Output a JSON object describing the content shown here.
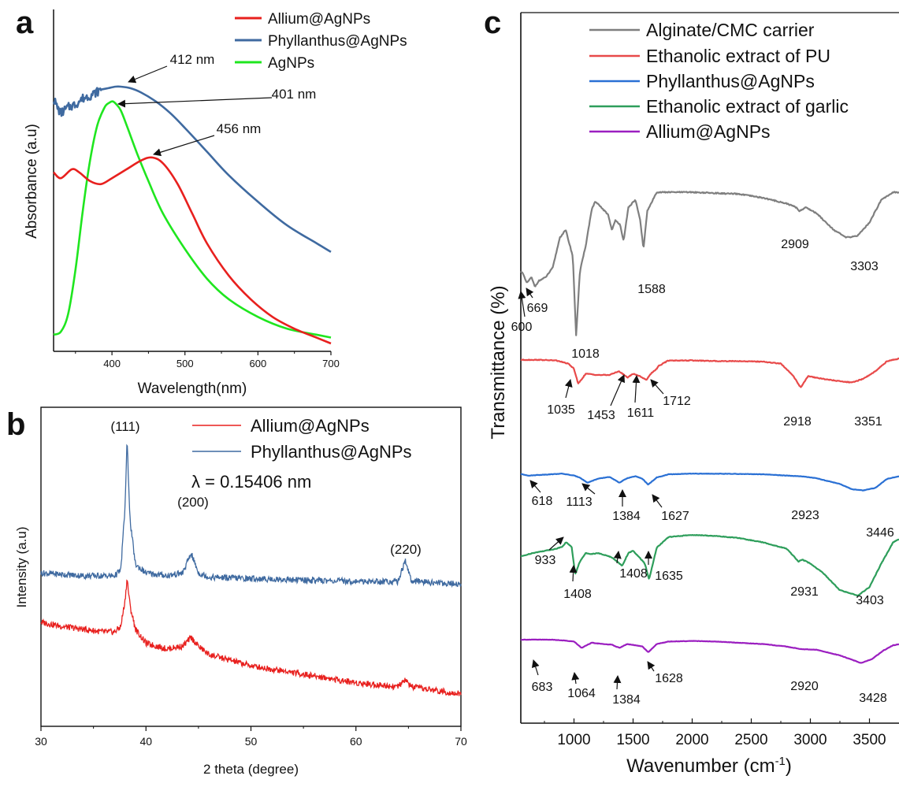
{
  "panels": [
    {
      "label": "a",
      "chart_data": {
        "type": "line",
        "xlabel": "Wavelength(nm)",
        "ylabel": "Absorbance (a.u)",
        "xlim": [
          320,
          700
        ],
        "xticks": [
          400,
          500,
          600,
          700
        ],
        "legend_position": "top-right",
        "series": [
          {
            "name": "Allium@AgNPs",
            "color": "#e8201e",
            "x": [
              320,
              330,
              345,
              355,
              370,
              385,
              400,
              420,
              440,
              455,
              470,
              490,
              510,
              530,
              560,
              590,
              620,
              650,
              680,
              700
            ],
            "y": [
              0.58,
              0.56,
              0.59,
              0.58,
              0.55,
              0.54,
              0.56,
              0.59,
              0.62,
              0.63,
              0.61,
              0.54,
              0.44,
              0.34,
              0.23,
              0.15,
              0.09,
              0.05,
              0.02,
              0.0
            ]
          },
          {
            "name": "Phyllanthus@AgNPs",
            "color": "#3f6aa0",
            "x": [
              320,
              325,
              330,
              340,
              350,
              360,
              370,
              378,
              385,
              395,
              405,
              412,
              425,
              440,
              460,
              480,
              500,
              530,
              560,
              600,
              640,
              680,
              700
            ],
            "y": [
              0.83,
              0.8,
              0.78,
              0.8,
              0.81,
              0.83,
              0.84,
              0.85,
              0.86,
              0.865,
              0.87,
              0.87,
              0.865,
              0.85,
              0.82,
              0.78,
              0.73,
              0.65,
              0.57,
              0.48,
              0.4,
              0.34,
              0.31
            ]
          },
          {
            "name": "AgNPs",
            "color": "#1fe61f",
            "x": [
              320,
              330,
              340,
              350,
              360,
              370,
              380,
              390,
              396,
              401,
              406,
              412,
              420,
              435,
              450,
              470,
              500,
              530,
              560,
              600,
              640,
              680,
              700
            ],
            "y": [
              0.03,
              0.04,
              0.1,
              0.25,
              0.45,
              0.62,
              0.74,
              0.8,
              0.815,
              0.82,
              0.81,
              0.79,
              0.74,
              0.64,
              0.55,
              0.44,
              0.32,
              0.22,
              0.15,
              0.09,
              0.05,
              0.03,
              0.02
            ]
          }
        ],
        "annotations": [
          "412 nm",
          "401 nm",
          "456 nm"
        ]
      }
    },
    {
      "label": "b",
      "chart_data": {
        "type": "line",
        "xlabel": "2 theta (degree)",
        "ylabel": "Intensity (a.u)",
        "xlim": [
          30,
          70
        ],
        "xticks": [
          30,
          40,
          50,
          60,
          70
        ],
        "legend_position": "top-right",
        "series": [
          {
            "name": "Allium@AgNPs",
            "color": "#e8201e",
            "x": [
              30,
              32,
              34,
              36,
              37,
              37.6,
              38.0,
              38.2,
              38.5,
              39.0,
              40,
              42,
              43.5,
              44.3,
              45,
              46,
              50,
              55,
              60,
              64,
              64.7,
              65.3,
              68,
              70
            ],
            "y": [
              0.345,
              0.33,
              0.32,
              0.31,
              0.31,
              0.33,
              0.42,
              0.5,
              0.4,
              0.32,
              0.27,
              0.25,
              0.26,
              0.29,
              0.26,
              0.23,
              0.19,
              0.16,
              0.13,
              0.115,
              0.14,
              0.115,
              0.1,
              0.09
            ]
          },
          {
            "name": "Phyllanthus@AgNPs",
            "color": "#3f6aa0",
            "x": [
              30,
              32,
              34,
              36,
              37,
              37.6,
              38.0,
              38.2,
              38.5,
              39.0,
              40,
              42,
              43.5,
              44.3,
              45,
              46,
              50,
              55,
              60,
              64,
              64.7,
              65.3,
              68,
              70
            ],
            "y": [
              0.52,
              0.515,
              0.51,
              0.51,
              0.51,
              0.53,
              0.75,
              0.99,
              0.7,
              0.55,
              0.52,
              0.51,
              0.52,
              0.59,
              0.52,
              0.505,
              0.5,
              0.495,
              0.49,
              0.49,
              0.565,
              0.49,
              0.485,
              0.48
            ]
          }
        ],
        "annotations": [
          "(111)",
          "(200)",
          "(220)",
          "λ = 0.15406 nm"
        ]
      }
    },
    {
      "label": "c",
      "chart_data": {
        "type": "line",
        "xlabel": "Wavenumber (cm",
        "xlabel_sup": "-1",
        "xlabel_close": ")",
        "ylabel": "Transmittance (%)",
        "xlim": [
          550,
          3750
        ],
        "xticks": [
          1000,
          1500,
          2000,
          2500,
          3000,
          3500
        ],
        "legend_position": "top",
        "series": [
          {
            "name": "Alginate/CMC carrier",
            "color": "#7f7f7f",
            "x": [
              560,
              600,
              640,
              669,
              700,
              760,
              820,
              880,
              930,
              960,
              990,
              1018,
              1050,
              1100,
              1150,
              1180,
              1230,
              1290,
              1320,
              1350,
              1390,
              1420,
              1460,
              1520,
              1560,
              1588,
              1620,
              1700,
              1800,
              2000,
              2200,
              2400,
              2600,
              2800,
              2880,
              2909,
              2960,
              3050,
              3200,
              3303,
              3400,
              3500,
              3600,
              3700,
              3750
            ],
            "y": [
              0.58,
              0.52,
              0.55,
              0.5,
              0.53,
              0.55,
              0.6,
              0.76,
              0.8,
              0.73,
              0.66,
              0.24,
              0.58,
              0.72,
              0.91,
              0.95,
              0.92,
              0.88,
              0.8,
              0.85,
              0.83,
              0.74,
              0.92,
              0.96,
              0.85,
              0.7,
              0.9,
              1.0,
              1.0,
              1.0,
              0.995,
              0.99,
              0.97,
              0.94,
              0.92,
              0.9,
              0.92,
              0.89,
              0.8,
              0.76,
              0.77,
              0.84,
              0.96,
              1.0,
              1.0
            ]
          },
          {
            "name": "Ethanolic extract of PU",
            "color": "#e84a4a",
            "x": [
              560,
              700,
              850,
              950,
              1000,
              1035,
              1100,
              1200,
              1300,
              1380,
              1453,
              1500,
              1560,
              1611,
              1650,
              1700,
              1712,
              1800,
              2000,
              2200,
              2400,
              2600,
              2750,
              2850,
              2918,
              2980,
              3100,
              3250,
              3351,
              3450,
              3550,
              3650,
              3750
            ],
            "y": [
              0.97,
              0.97,
              0.965,
              0.94,
              0.9,
              0.78,
              0.86,
              0.85,
              0.85,
              0.88,
              0.83,
              0.86,
              0.84,
              0.81,
              0.86,
              0.9,
              0.92,
              0.965,
              0.965,
              0.96,
              0.96,
              0.955,
              0.94,
              0.85,
              0.75,
              0.84,
              0.82,
              0.8,
              0.79,
              0.82,
              0.88,
              0.96,
              0.98
            ]
          },
          {
            "name": "Phyllanthus@AgNPs",
            "color": "#2a70d4",
            "x": [
              560,
              618,
              700,
              800,
              900,
              1000,
              1050,
              1113,
              1200,
              1300,
              1384,
              1450,
              1520,
              1580,
              1627,
              1700,
              1800,
              2000,
              2200,
              2400,
              2600,
              2800,
              2923,
              3050,
              3250,
              3350,
              3446,
              3550,
              3650,
              3750
            ],
            "y": [
              0.95,
              0.93,
              0.94,
              0.95,
              0.96,
              0.93,
              0.9,
              0.82,
              0.88,
              0.91,
              0.82,
              0.89,
              0.92,
              0.88,
              0.79,
              0.9,
              0.95,
              0.96,
              0.96,
              0.955,
              0.95,
              0.93,
              0.92,
              0.89,
              0.8,
              0.72,
              0.7,
              0.74,
              0.88,
              0.92
            ]
          },
          {
            "name": "Ethanolic extract of garlic",
            "color": "#2e9e5b",
            "x": [
              560,
              650,
              750,
              850,
              900,
              933,
              980,
              1010,
              1050,
              1100,
              1150,
              1200,
              1260,
              1320,
              1408,
              1460,
              1500,
              1560,
              1600,
              1635,
              1700,
              1800,
              2000,
              2200,
              2400,
              2600,
              2800,
              2900,
              2931,
              3000,
              3100,
              3250,
              3403,
              3500,
              3600,
              3700,
              3750
            ],
            "y": [
              0.77,
              0.8,
              0.82,
              0.84,
              0.86,
              0.9,
              0.86,
              0.6,
              0.72,
              0.8,
              0.79,
              0.8,
              0.78,
              0.76,
              0.68,
              0.8,
              0.82,
              0.75,
              0.7,
              0.55,
              0.85,
              0.95,
              0.97,
              0.96,
              0.94,
              0.9,
              0.84,
              0.72,
              0.74,
              0.7,
              0.62,
              0.45,
              0.4,
              0.48,
              0.7,
              0.9,
              0.93
            ]
          },
          {
            "name": "Allium@AgNPs",
            "color": "#9b1fc0",
            "x": [
              560,
              683,
              800,
              900,
              1000,
              1064,
              1150,
              1250,
              1320,
              1384,
              1450,
              1520,
              1580,
              1628,
              1700,
              1800,
              2000,
              2200,
              2400,
              2600,
              2800,
              2920,
              3050,
              3250,
              3428,
              3520,
              3620,
              3700,
              3750
            ],
            "y": [
              0.95,
              0.95,
              0.95,
              0.94,
              0.92,
              0.82,
              0.9,
              0.88,
              0.87,
              0.82,
              0.88,
              0.86,
              0.84,
              0.75,
              0.88,
              0.92,
              0.93,
              0.92,
              0.9,
              0.88,
              0.84,
              0.8,
              0.79,
              0.7,
              0.58,
              0.64,
              0.78,
              0.86,
              0.88
            ]
          }
        ],
        "annotations": {
          "Alginate/CMC carrier": [
            "600",
            "669",
            "1018",
            "1588",
            "2909",
            "3303"
          ],
          "Ethanolic extract of PU": [
            "1035",
            "1453",
            "1611",
            "1712",
            "2918",
            "3351"
          ],
          "Phyllanthus@AgNPs": [
            "618",
            "1113",
            "1384",
            "1627",
            "2923",
            "3446"
          ],
          "Ethanolic extract of garlic": [
            "933",
            "1408",
            "1408",
            "1635",
            "2931",
            "3403"
          ],
          "Allium@AgNPs": [
            "683",
            "1064",
            "1384",
            "1628",
            "2920",
            "3428"
          ]
        }
      }
    }
  ]
}
